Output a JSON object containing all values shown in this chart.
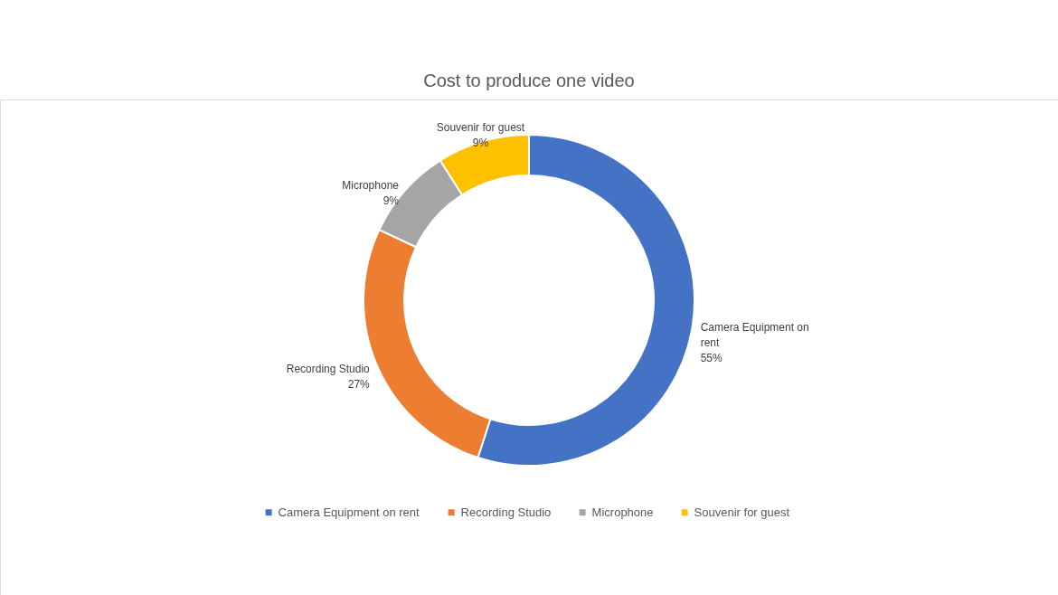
{
  "chart_data": {
    "type": "donut",
    "title": "Cost to produce one video",
    "categories": [
      "Camera Equipment on rent",
      "Recording Studio",
      "Microphone",
      "Souvenir for guest"
    ],
    "values": [
      55,
      27,
      9,
      9
    ],
    "colors": [
      "#4472c4",
      "#ed7d31",
      "#a5a5a5",
      "#ffc000"
    ],
    "value_labels": [
      "55%",
      "27%",
      "9%",
      "9%"
    ],
    "legend": "bottom"
  }
}
